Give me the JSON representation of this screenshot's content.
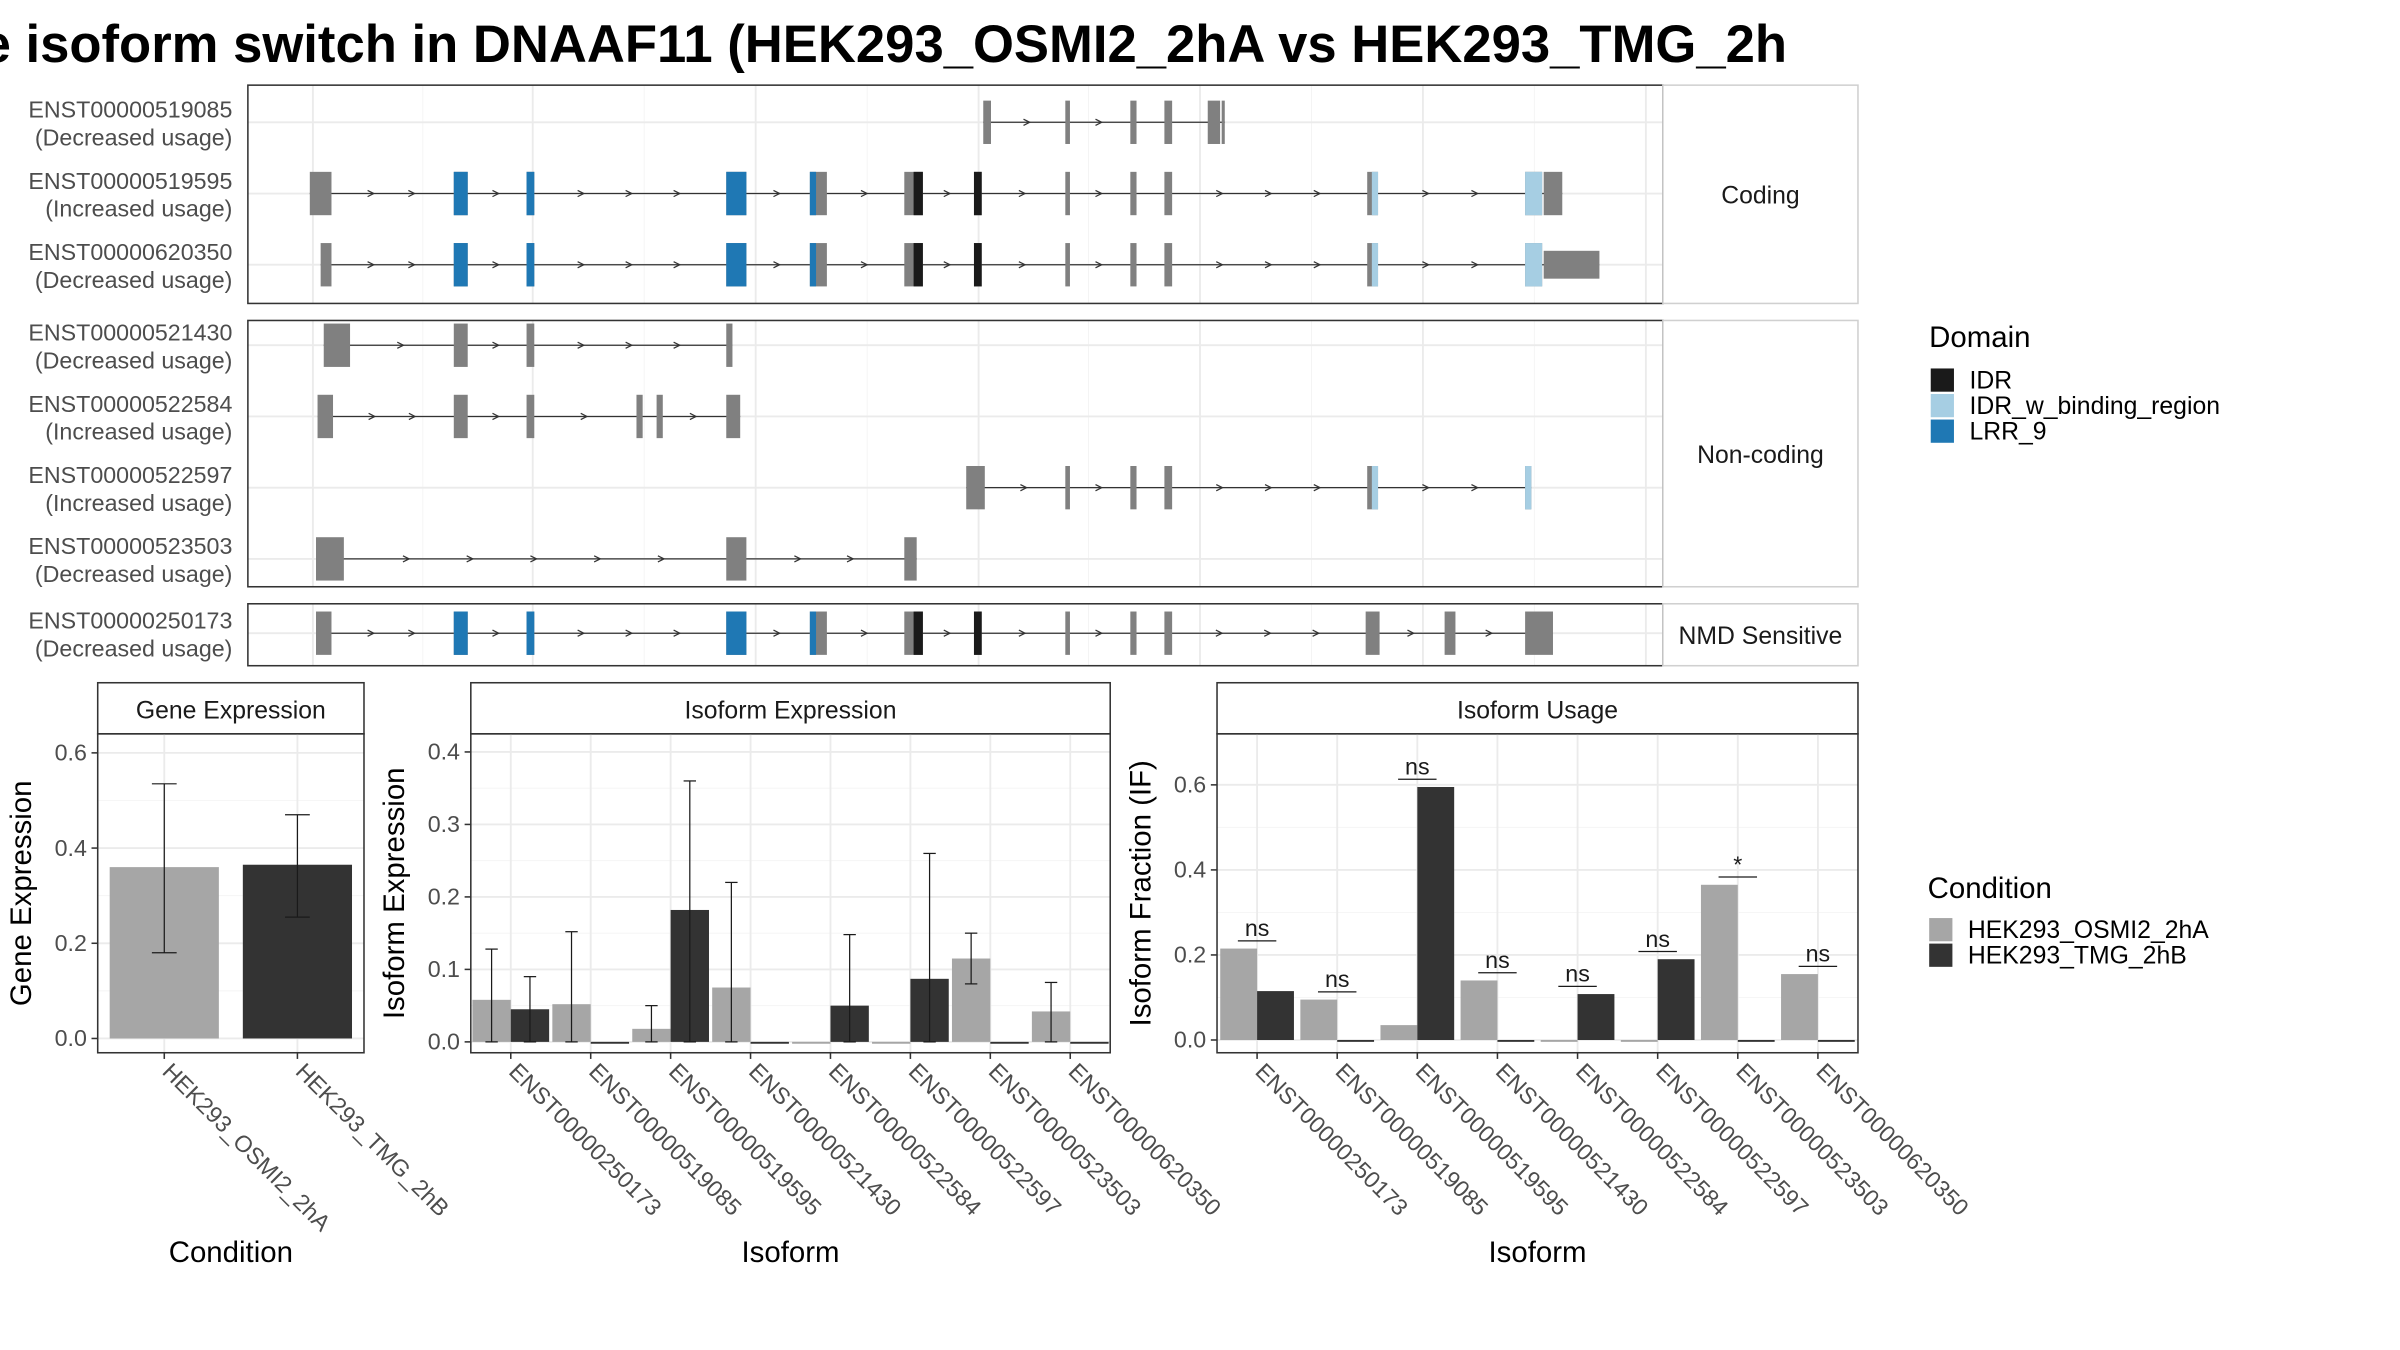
{
  "title": "e isoform switch in DNAAF11 (HEK293_OSMI2_2hA vs HEK293_TMG_2h",
  "colors": {
    "intron_gray": "#808080",
    "IDR": "#1a1a1a",
    "IDR_w_binding_region": "#a6cee3",
    "LRR_9": "#1f78b4",
    "cond_a": "#a6a6a6",
    "cond_b": "#333333",
    "grid": "#ebebeb",
    "strip_fill": "#ffffff"
  },
  "transcript_groups": [
    {
      "label": "Coding",
      "transcripts": [
        {
          "id": "ENST00000519085",
          "usage": "(Decreased usage)",
          "exons": [
            [
              635,
              640
            ],
            [
              688,
              691
            ],
            [
              730,
              734
            ],
            [
              752,
              757
            ],
            [
              780,
              788
            ],
            [
              789,
              791
            ]
          ],
          "domains": []
        },
        {
          "id": "ENST00000519595",
          "usage": "(Increased usage)",
          "exons": [
            [
              200,
              214
            ],
            [
              293,
              302
            ],
            [
              340,
              345
            ],
            [
              469,
              482
            ],
            [
              523,
              534
            ],
            [
              584,
              596
            ],
            [
              629,
              634
            ],
            [
              688,
              691
            ],
            [
              730,
              734
            ],
            [
              752,
              757
            ],
            [
              883,
              890
            ],
            [
              985,
              996
            ],
            [
              997,
              1009
            ]
          ],
          "domains": [
            [
              "LRR_9",
              293,
              302
            ],
            [
              "LRR_9",
              340,
              345
            ],
            [
              "LRR_9",
              469,
              482
            ],
            [
              "LRR_9",
              523,
              527
            ],
            [
              "IDR",
              590,
              596
            ],
            [
              "IDR",
              629,
              634
            ],
            [
              "IDR_w_binding_region",
              886,
              890
            ],
            [
              "IDR_w_binding_region",
              985,
              996
            ]
          ]
        },
        {
          "id": "ENST00000620350",
          "usage": "(Decreased usage)",
          "exons": [
            [
              207,
              214
            ],
            [
              293,
              302
            ],
            [
              340,
              345
            ],
            [
              469,
              482
            ],
            [
              523,
              534
            ],
            [
              584,
              596
            ],
            [
              629,
              634
            ],
            [
              688,
              691
            ],
            [
              730,
              734
            ],
            [
              752,
              757
            ],
            [
              883,
              890
            ],
            [
              985,
              996
            ],
            [
              997,
              1033
            ]
          ],
          "domains": [
            [
              "LRR_9",
              293,
              302
            ],
            [
              "LRR_9",
              340,
              345
            ],
            [
              "LRR_9",
              469,
              482
            ],
            [
              "LRR_9",
              523,
              527
            ],
            [
              "IDR",
              590,
              596
            ],
            [
              "IDR",
              629,
              634
            ],
            [
              "IDR_w_binding_region",
              886,
              890
            ],
            [
              "IDR_w_binding_region",
              985,
              996
            ]
          ]
        }
      ]
    },
    {
      "label": "Non-coding",
      "transcripts": [
        {
          "id": "ENST00000521430",
          "usage": "(Decreased usage)",
          "exons": [
            [
              209,
              226
            ],
            [
              293,
              302
            ],
            [
              340,
              345
            ],
            [
              469,
              473
            ]
          ],
          "domains": []
        },
        {
          "id": "ENST00000522584",
          "usage": "(Increased usage)",
          "exons": [
            [
              205,
              215
            ],
            [
              293,
              302
            ],
            [
              340,
              345
            ],
            [
              411,
              415
            ],
            [
              424,
              428
            ],
            [
              469,
              478
            ]
          ],
          "domains": []
        },
        {
          "id": "ENST00000522597",
          "usage": "(Increased usage)",
          "exons": [
            [
              624,
              636
            ],
            [
              688,
              691
            ],
            [
              730,
              734
            ],
            [
              752,
              757
            ],
            [
              883,
              890
            ],
            [
              985,
              989
            ]
          ],
          "domains": [
            [
              "IDR_w_binding_region",
              886,
              890
            ],
            [
              "IDR_w_binding_region",
              985,
              989
            ]
          ]
        },
        {
          "id": "ENST00000523503",
          "usage": "(Decreased usage)",
          "exons": [
            [
              204,
              222
            ],
            [
              469,
              482
            ],
            [
              584,
              592
            ]
          ],
          "domains": []
        }
      ]
    },
    {
      "label": "NMD Sensitive",
      "transcripts": [
        {
          "id": "ENST00000250173",
          "usage": "(Decreased usage)",
          "exons": [
            [
              204,
              214
            ],
            [
              293,
              302
            ],
            [
              340,
              345
            ],
            [
              469,
              482
            ],
            [
              523,
              534
            ],
            [
              584,
              596
            ],
            [
              629,
              634
            ],
            [
              688,
              691
            ],
            [
              730,
              734
            ],
            [
              752,
              757
            ],
            [
              882,
              891
            ],
            [
              933,
              940
            ],
            [
              985,
              1003
            ]
          ],
          "domains": [
            [
              "LRR_9",
              293,
              302
            ],
            [
              "LRR_9",
              340,
              345
            ],
            [
              "LRR_9",
              469,
              482
            ],
            [
              "LRR_9",
              523,
              527
            ],
            [
              "IDR",
              590,
              596
            ],
            [
              "IDR",
              629,
              634
            ]
          ]
        }
      ]
    }
  ],
  "domain_legend": {
    "title": "Domain",
    "items": [
      {
        "key": "IDR",
        "label": "IDR"
      },
      {
        "key": "IDR_w_binding_region",
        "label": "IDR_w_binding_region"
      },
      {
        "key": "LRR_9",
        "label": "LRR_9"
      }
    ]
  },
  "condition_legend": {
    "title": "Condition",
    "items": [
      {
        "key": "cond_a",
        "label": "HEK293_OSMI2_2hA"
      },
      {
        "key": "cond_b",
        "label": "HEK293_TMG_2hB"
      }
    ]
  },
  "chart_data": [
    {
      "type": "bar",
      "title": "Gene Expression",
      "xlabel": "Condition",
      "ylabel": "Gene Expression",
      "ylim": [
        -0.03,
        0.64
      ],
      "yticks": [
        "0.0",
        "0.2",
        "0.4",
        "0.6"
      ],
      "categories": [
        "HEK293_OSMI2_2hA",
        "HEK293_TMG_2hB"
      ],
      "values": [
        0.36,
        0.365
      ],
      "error_low": [
        0.18,
        0.255
      ],
      "error_high": [
        0.535,
        0.47
      ]
    },
    {
      "type": "bar",
      "title": "Isoform Expression",
      "xlabel": "Isoform",
      "ylabel": "Isoform Expression",
      "ylim": [
        -0.015,
        0.425
      ],
      "yticks": [
        "0.0",
        "0.1",
        "0.2",
        "0.3",
        "0.4"
      ],
      "categories": [
        "ENST00000250173",
        "ENST00000519085",
        "ENST00000519595",
        "ENST00000521430",
        "ENST00000522584",
        "ENST00000522597",
        "ENST00000523503",
        "ENST00000620350"
      ],
      "series": [
        {
          "name": "HEK293_OSMI2_2hA",
          "values": [
            0.058,
            0.052,
            0.018,
            0.075,
            0.0,
            0.0,
            0.115,
            0.042
          ],
          "error_low": [
            0.0,
            0.0,
            0.0,
            0.0,
            0.0,
            0.0,
            0.08,
            0.0
          ],
          "error_high": [
            0.128,
            0.152,
            0.05,
            0.22,
            0.0,
            0.0,
            0.15,
            0.082
          ]
        },
        {
          "name": "HEK293_TMG_2hB",
          "values": [
            0.045,
            0.0,
            0.182,
            0.0,
            0.05,
            0.087,
            0.0,
            0.0
          ],
          "error_low": [
            0.0,
            0.0,
            0.0,
            0.0,
            0.0,
            0.0,
            0.0,
            0.0
          ],
          "error_high": [
            0.09,
            0.0,
            0.36,
            0.0,
            0.148,
            0.26,
            0.0,
            0.0
          ]
        }
      ]
    },
    {
      "type": "bar",
      "title": "Isoform Usage",
      "xlabel": "Isoform",
      "ylabel": "Isoform Fraction (IF)",
      "ylim": [
        -0.03,
        0.72
      ],
      "yticks": [
        "0.0",
        "0.2",
        "0.4",
        "0.6"
      ],
      "categories": [
        "ENST00000250173",
        "ENST00000519085",
        "ENST00000519595",
        "ENST00000521430",
        "ENST00000522584",
        "ENST00000522597",
        "ENST00000523503",
        "ENST00000620350"
      ],
      "series": [
        {
          "name": "HEK293_OSMI2_2hA",
          "values": [
            0.215,
            0.095,
            0.035,
            0.14,
            0.0,
            0.0,
            0.365,
            0.155
          ]
        },
        {
          "name": "HEK293_TMG_2hB",
          "values": [
            0.115,
            0.0,
            0.595,
            0.0,
            0.108,
            0.19,
            0.0,
            0.0
          ]
        }
      ],
      "significance": [
        "ns",
        "ns",
        "ns",
        "ns",
        "ns",
        "ns",
        "*",
        "ns"
      ]
    }
  ]
}
